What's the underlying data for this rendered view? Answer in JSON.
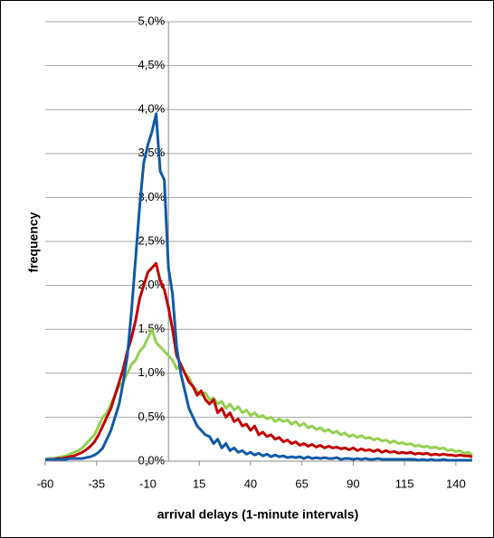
{
  "chart_data": {
    "type": "line",
    "xlabel": "arrival delays (1-minute intervals)",
    "ylabel": "frequency",
    "x": [
      -60,
      -58,
      -56,
      -54,
      -52,
      -50,
      -48,
      -46,
      -44,
      -42,
      -40,
      -38,
      -36,
      -34,
      -32,
      -30,
      -28,
      -26,
      -24,
      -22,
      -20,
      -18,
      -16,
      -14,
      -12,
      -10,
      -8,
      -6,
      -4,
      -2,
      0,
      2,
      4,
      6,
      8,
      10,
      12,
      14,
      16,
      18,
      20,
      22,
      24,
      26,
      28,
      30,
      32,
      34,
      36,
      38,
      40,
      42,
      44,
      46,
      48,
      50,
      52,
      54,
      56,
      58,
      60,
      62,
      64,
      66,
      68,
      70,
      72,
      74,
      76,
      78,
      80,
      82,
      84,
      86,
      88,
      90,
      92,
      94,
      96,
      98,
      100,
      102,
      104,
      106,
      108,
      110,
      112,
      114,
      116,
      118,
      120,
      122,
      124,
      126,
      128,
      130,
      132,
      134,
      136,
      138,
      140,
      142,
      144,
      146,
      148
    ],
    "series": [
      {
        "color": "#0e5aa7",
        "values": [
          0.02,
          0.02,
          0.02,
          0.02,
          0.02,
          0.02,
          0.03,
          0.03,
          0.03,
          0.03,
          0.04,
          0.05,
          0.07,
          0.1,
          0.15,
          0.25,
          0.35,
          0.5,
          0.65,
          0.9,
          1.2,
          1.7,
          2.3,
          2.9,
          3.4,
          3.6,
          3.75,
          3.95,
          3.3,
          3.2,
          2.2,
          1.9,
          1.3,
          1.0,
          0.8,
          0.6,
          0.5,
          0.4,
          0.35,
          0.3,
          0.28,
          0.2,
          0.25,
          0.15,
          0.2,
          0.12,
          0.15,
          0.1,
          0.12,
          0.08,
          0.1,
          0.07,
          0.09,
          0.06,
          0.08,
          0.05,
          0.07,
          0.05,
          0.06,
          0.04,
          0.05,
          0.04,
          0.05,
          0.03,
          0.05,
          0.03,
          0.04,
          0.03,
          0.04,
          0.03,
          0.03,
          0.04,
          0.02,
          0.03,
          0.03,
          0.02,
          0.03,
          0.02,
          0.03,
          0.02,
          0.02,
          0.03,
          0.02,
          0.02,
          0.02,
          0.02,
          0.02,
          0.02,
          0.02,
          0.02,
          0.02,
          0.01,
          0.02,
          0.01,
          0.02,
          0.01,
          0.01,
          0.02,
          0.01,
          0.01,
          0.01,
          0.01,
          0.01,
          0.01,
          0.01
        ]
      },
      {
        "color": "#c00000",
        "values": [
          0.02,
          0.02,
          0.02,
          0.03,
          0.03,
          0.04,
          0.05,
          0.06,
          0.08,
          0.1,
          0.13,
          0.17,
          0.22,
          0.3,
          0.4,
          0.5,
          0.6,
          0.75,
          0.9,
          1.05,
          1.25,
          1.4,
          1.6,
          1.85,
          2.0,
          2.15,
          2.2,
          2.25,
          2.05,
          1.95,
          1.75,
          1.5,
          1.2,
          1.1,
          1.0,
          0.9,
          0.85,
          0.75,
          0.8,
          0.7,
          0.65,
          0.7,
          0.55,
          0.6,
          0.5,
          0.55,
          0.45,
          0.48,
          0.4,
          0.42,
          0.35,
          0.4,
          0.3,
          0.33,
          0.28,
          0.3,
          0.25,
          0.27,
          0.22,
          0.24,
          0.2,
          0.22,
          0.18,
          0.2,
          0.17,
          0.19,
          0.16,
          0.18,
          0.15,
          0.17,
          0.15,
          0.16,
          0.14,
          0.15,
          0.13,
          0.15,
          0.12,
          0.14,
          0.12,
          0.13,
          0.11,
          0.13,
          0.1,
          0.12,
          0.1,
          0.11,
          0.09,
          0.1,
          0.09,
          0.1,
          0.08,
          0.09,
          0.08,
          0.09,
          0.07,
          0.08,
          0.07,
          0.08,
          0.07,
          0.07,
          0.06,
          0.07,
          0.06,
          0.06,
          0.05
        ]
      },
      {
        "color": "#92d050",
        "values": [
          0.02,
          0.03,
          0.03,
          0.04,
          0.05,
          0.06,
          0.08,
          0.1,
          0.12,
          0.15,
          0.2,
          0.25,
          0.3,
          0.4,
          0.5,
          0.55,
          0.65,
          0.75,
          0.85,
          0.9,
          1.0,
          1.1,
          1.15,
          1.25,
          1.3,
          1.4,
          1.5,
          1.35,
          1.3,
          1.25,
          1.2,
          1.15,
          1.05,
          1.1,
          1.0,
          0.95,
          0.85,
          0.8,
          0.75,
          0.78,
          0.7,
          0.72,
          0.65,
          0.68,
          0.6,
          0.65,
          0.58,
          0.62,
          0.55,
          0.58,
          0.52,
          0.55,
          0.5,
          0.52,
          0.48,
          0.5,
          0.45,
          0.48,
          0.45,
          0.47,
          0.42,
          0.45,
          0.4,
          0.43,
          0.38,
          0.4,
          0.36,
          0.38,
          0.34,
          0.36,
          0.32,
          0.34,
          0.3,
          0.32,
          0.28,
          0.3,
          0.27,
          0.29,
          0.26,
          0.27,
          0.24,
          0.26,
          0.23,
          0.24,
          0.21,
          0.23,
          0.2,
          0.21,
          0.19,
          0.2,
          0.17,
          0.18,
          0.16,
          0.17,
          0.15,
          0.16,
          0.14,
          0.15,
          0.12,
          0.13,
          0.11,
          0.12,
          0.09,
          0.1,
          0.07
        ]
      }
    ],
    "xlim": [
      -60,
      148
    ],
    "xticks": [
      -60,
      -35,
      -10,
      15,
      40,
      65,
      90,
      115,
      140
    ],
    "ylim": [
      0,
      5
    ],
    "yticks": [
      {
        "value": 0,
        "label": "0,0%"
      },
      {
        "value": 0.5,
        "label": "0,5%"
      },
      {
        "value": 1,
        "label": "1,0%"
      },
      {
        "value": 1.5,
        "label": "1,5%"
      },
      {
        "value": 2,
        "label": "2,0%"
      },
      {
        "value": 2.5,
        "label": "2,5%"
      },
      {
        "value": 3,
        "label": "3,0%"
      },
      {
        "value": 3.5,
        "label": "3,5%"
      },
      {
        "value": 4,
        "label": "4,0%"
      },
      {
        "value": 4.5,
        "label": "4,5%"
      },
      {
        "value": 5,
        "label": "5,0%"
      }
    ],
    "grid": true
  }
}
